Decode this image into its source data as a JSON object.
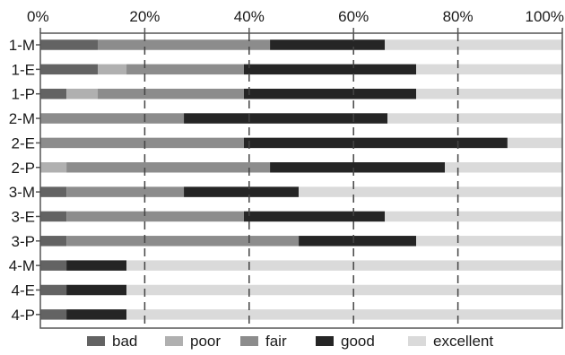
{
  "chart_data": {
    "type": "bar",
    "orientation": "horizontal",
    "stacked": true,
    "categories": [
      "1-M",
      "1-E",
      "1-P",
      "2-M",
      "2-E",
      "2-P",
      "3-M",
      "3-E",
      "3-P",
      "4-M",
      "4-E",
      "4-P"
    ],
    "x_ticks": [
      "0%",
      "20%",
      "40%",
      "60%",
      "80%",
      "100%"
    ],
    "xlim": [
      0,
      100
    ],
    "x_axis_position": "top",
    "grid": "vertical dashed",
    "legend_position": "bottom",
    "series": [
      {
        "name": "bad",
        "color": "#636363",
        "values": [
          11,
          11,
          5,
          0,
          0,
          0,
          5,
          5,
          5,
          5,
          5,
          5
        ]
      },
      {
        "name": "poor",
        "color": "#b0b0b0",
        "values": [
          0,
          5.5,
          6,
          0,
          0,
          5,
          0,
          0,
          0,
          0,
          0,
          0
        ]
      },
      {
        "name": "fair",
        "color": "#8c8c8c",
        "values": [
          33,
          22.5,
          28,
          27.5,
          39,
          39,
          22.5,
          34,
          44.5,
          0,
          0,
          0
        ]
      },
      {
        "name": "good",
        "color": "#252525",
        "values": [
          22,
          33,
          33,
          39,
          50.5,
          33.5,
          22,
          27,
          22.5,
          11.5,
          11.5,
          11.5
        ]
      },
      {
        "name": "excellent",
        "color": "#dadada",
        "values": [
          34,
          28,
          28,
          33.5,
          10.5,
          22.5,
          50.5,
          34,
          28,
          83.5,
          83.5,
          83.5
        ]
      }
    ]
  }
}
